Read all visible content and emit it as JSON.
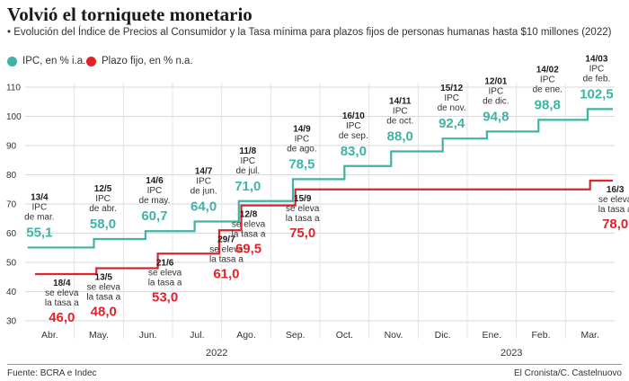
{
  "title": "Volvió el torniquete monetario",
  "subtitle": "• Evolución del Índice de Precios al Consumidor y la Tasa mínima para plazos fijos de personas humanas hasta $10 millones (2022)",
  "footer": {
    "source": "Fuente: BCRA e Indec",
    "credit": "El Cronista/C. Castelnuovo"
  },
  "chart_data": {
    "type": "line",
    "step": true,
    "ylim": [
      30,
      110
    ],
    "yticks": [
      30,
      40,
      50,
      60,
      70,
      80,
      90,
      100,
      110
    ],
    "grid": true,
    "legend_position": "top-left",
    "colors": {
      "ipc": "#3fb3a6",
      "plazo": "#e0232b"
    },
    "categories": [
      "Abr.",
      "May.",
      "Jun.",
      "Jul.",
      "Ago.",
      "Sep.",
      "Oct.",
      "Nov.",
      "Dic.",
      "Ene.",
      "Feb.",
      "Mar."
    ],
    "year_labels": [
      {
        "label": "2022",
        "category_index": 4
      },
      {
        "label": "2023",
        "category_index": 10
      }
    ],
    "series": [
      {
        "name": "IPC, en % i.a.",
        "key": "ipc",
        "points": [
          {
            "date": "13/4",
            "x": 0.4,
            "value": 55.1,
            "note": "IPC de mar."
          },
          {
            "date": "12/5",
            "x": 1.4,
            "value": 58.0,
            "note": "IPC de abr."
          },
          {
            "date": "14/6",
            "x": 2.45,
            "value": 60.7,
            "note": "IPC de may."
          },
          {
            "date": "14/7",
            "x": 3.45,
            "value": 64.0,
            "note": "IPC de jun."
          },
          {
            "date": "11/8",
            "x": 4.35,
            "value": 71.0,
            "note": "IPC de jul."
          },
          {
            "date": "14/9",
            "x": 5.45,
            "value": 78.5,
            "note": "IPC de ago."
          },
          {
            "date": "16/10",
            "x": 6.5,
            "value": 83.0,
            "note": "IPC de sep."
          },
          {
            "date": "14/11",
            "x": 7.45,
            "value": 88.0,
            "note": "IPC de oct."
          },
          {
            "date": "15/12",
            "x": 8.5,
            "value": 92.4,
            "note": "IPC de nov."
          },
          {
            "date": "12/01",
            "x": 9.4,
            "value": 94.8,
            "note": "IPC de dic."
          },
          {
            "date": "14/02",
            "x": 10.45,
            "value": 98.8,
            "note": "IPC de ene."
          },
          {
            "date": "14/03",
            "x": 11.45,
            "value": 102.5,
            "note": "IPC de feb."
          }
        ],
        "labels_text": [
          "55,1",
          "58,0",
          "60,7",
          "64,0",
          "71,0",
          "78,5",
          "83,0",
          "88,0",
          "92,4",
          "94,8",
          "98,8",
          "102,5"
        ]
      },
      {
        "name": "Plazo fijo, en % n.a.",
        "key": "plazo",
        "points": [
          {
            "date": "18/4",
            "x": 0.6,
            "value": 46.0,
            "note": "se eleva la tasa a"
          },
          {
            "date": "13/5",
            "x": 1.45,
            "value": 48.0,
            "note": "se eleva la tasa a"
          },
          {
            "date": "21/6",
            "x": 2.7,
            "value": 53.0,
            "note": "se eleva la tasa a"
          },
          {
            "date": "29/7",
            "x": 3.95,
            "value": 61.0,
            "note": "se eleva la tasa a"
          },
          {
            "date": "12/8",
            "x": 4.4,
            "value": 69.5,
            "note": "se eleva la tasa a"
          },
          {
            "date": "15/9",
            "x": 5.5,
            "value": 75.0,
            "note": "se eleva la tasa a"
          },
          {
            "date": "16/3",
            "x": 11.5,
            "value": 78.0,
            "note": "se eleva la tasa a"
          }
        ],
        "labels_text": [
          "46,0",
          "48,0",
          "53,0",
          "61,0",
          "69,5",
          "75,0",
          "78,0"
        ]
      }
    ]
  }
}
